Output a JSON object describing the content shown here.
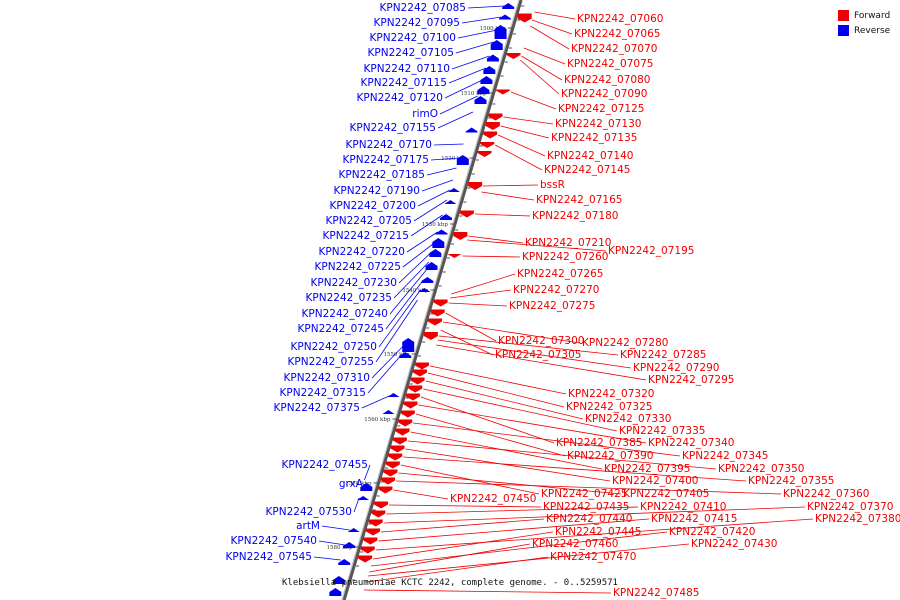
{
  "legend": [
    {
      "label": "Forward",
      "color": "#ee0000"
    },
    {
      "label": "Reverse",
      "color": "#0000ee"
    }
  ],
  "caption": "Klebsiella pneumoniae KCTC 2242, complete genome. - 0..5259571",
  "ticks": [
    "1500 kbp",
    "1510 kbp",
    "1520 kbp",
    "1530 kbp",
    "1540 kbp",
    "1550 kbp",
    "1560 kbp",
    "1570 kbp",
    "1580 kbp"
  ],
  "reverse_genes": [
    "KPN2242_07085",
    "KPN2242_07095",
    "KPN2242_07100",
    "KPN2242_07105",
    "KPN2242_07110",
    "KPN2242_07115",
    "KPN2242_07120",
    "rimO",
    "KPN2242_07155",
    "KPN2242_07170",
    "KPN2242_07175",
    "KPN2242_07185",
    "KPN2242_07190",
    "KPN2242_07200",
    "KPN2242_07205",
    "KPN2242_07215",
    "KPN2242_07220",
    "KPN2242_07225",
    "KPN2242_07230",
    "KPN2242_07235",
    "KPN2242_07240",
    "KPN2242_07245",
    "KPN2242_07250",
    "KPN2242_07255",
    "KPN2242_07310",
    "KPN2242_07315",
    "KPN2242_07375",
    "KPN2242_07455",
    "grxA",
    "KPN2242_07530",
    "artM",
    "KPN2242_07540",
    "KPN2242_07545"
  ],
  "forward_genes": [
    "KPN2242_07060",
    "KPN2242_07065",
    "KPN2242_07070",
    "KPN2242_07075",
    "KPN2242_07080",
    "KPN2242_07090",
    "KPN2242_07125",
    "KPN2242_07130",
    "KPN2242_07135",
    "KPN2242_07140",
    "KPN2242_07145",
    "bssR",
    "KPN2242_07165",
    "KPN2242_07180",
    "KPN2242_07210",
    "KPN2242_07195",
    "KPN2242_07260",
    "KPN2242_07265",
    "KPN2242_07270",
    "KPN2242_07275",
    "KPN2242_07300",
    "KPN2242_07280",
    "KPN2242_07305",
    "KPN2242_07285",
    "KPN2242_07290",
    "KPN2242_07295",
    "KPN2242_07320",
    "KPN2242_07325",
    "KPN2242_07330",
    "KPN2242_07335",
    "KPN2242_07385",
    "KPN2242_07340",
    "KPN2242_07390",
    "KPN2242_07345",
    "KPN2242_07395",
    "KPN2242_07350",
    "KPN2242_07400",
    "KPN2242_07355",
    "KPN2242_07425",
    "KPN2242_07405",
    "KPN2242_07360",
    "KPN2242_07450",
    "KPN2242_07435",
    "KPN2242_07410",
    "KPN2242_07370",
    "KPN2242_07440",
    "KPN2242_07415",
    "KPN2242_07380",
    "KPN2242_07445",
    "KPN2242_07420",
    "KPN2242_07460",
    "KPN2242_07430",
    "KPN2242_07470",
    "KPN2242_07485"
  ]
}
